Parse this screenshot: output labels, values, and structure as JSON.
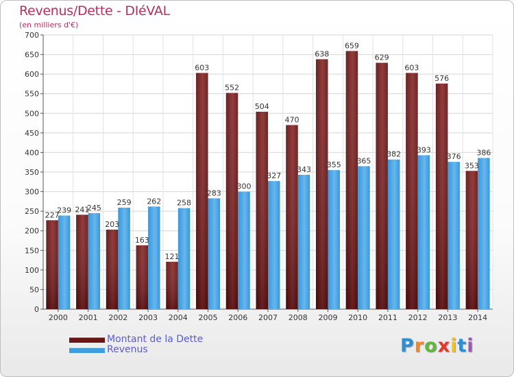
{
  "title": "Revenus/Dette - DIéVAL",
  "subtitle": "(en milliers d'€)",
  "chart_data": {
    "type": "bar",
    "categories": [
      "2000",
      "2001",
      "2002",
      "2003",
      "2004",
      "2005",
      "2006",
      "2007",
      "2008",
      "2009",
      "2010",
      "2011",
      "2012",
      "2013",
      "2014"
    ],
    "series": [
      {
        "name": "Montant de la Dette",
        "color": "#6b1515",
        "values": [
          227,
          241,
          203,
          163,
          121,
          603,
          552,
          504,
          470,
          638,
          659,
          629,
          603,
          576,
          353
        ]
      },
      {
        "name": "Revenus",
        "color": "#3f9ee0",
        "values": [
          239,
          245,
          259,
          262,
          258,
          283,
          300,
          327,
          343,
          355,
          365,
          382,
          393,
          376,
          386
        ]
      }
    ],
    "ylim": [
      0,
      700
    ],
    "yticks": [
      0,
      50,
      100,
      150,
      200,
      250,
      300,
      350,
      400,
      450,
      500,
      550,
      600,
      650,
      700
    ],
    "grid": true,
    "legend_position": "bottom-left"
  },
  "logo": {
    "letters": [
      {
        "char": "P",
        "color": "#2a8fd6"
      },
      {
        "char": "r",
        "color": "#f08a1c"
      },
      {
        "char": "o",
        "color": "#5fb83a"
      },
      {
        "char": "x",
        "color": "#e23b2e"
      },
      {
        "char": "i",
        "color": "#f2c21b"
      },
      {
        "char": "t",
        "color": "#2a8fd6"
      },
      {
        "char": "i",
        "color": "#9b59b6"
      }
    ]
  }
}
